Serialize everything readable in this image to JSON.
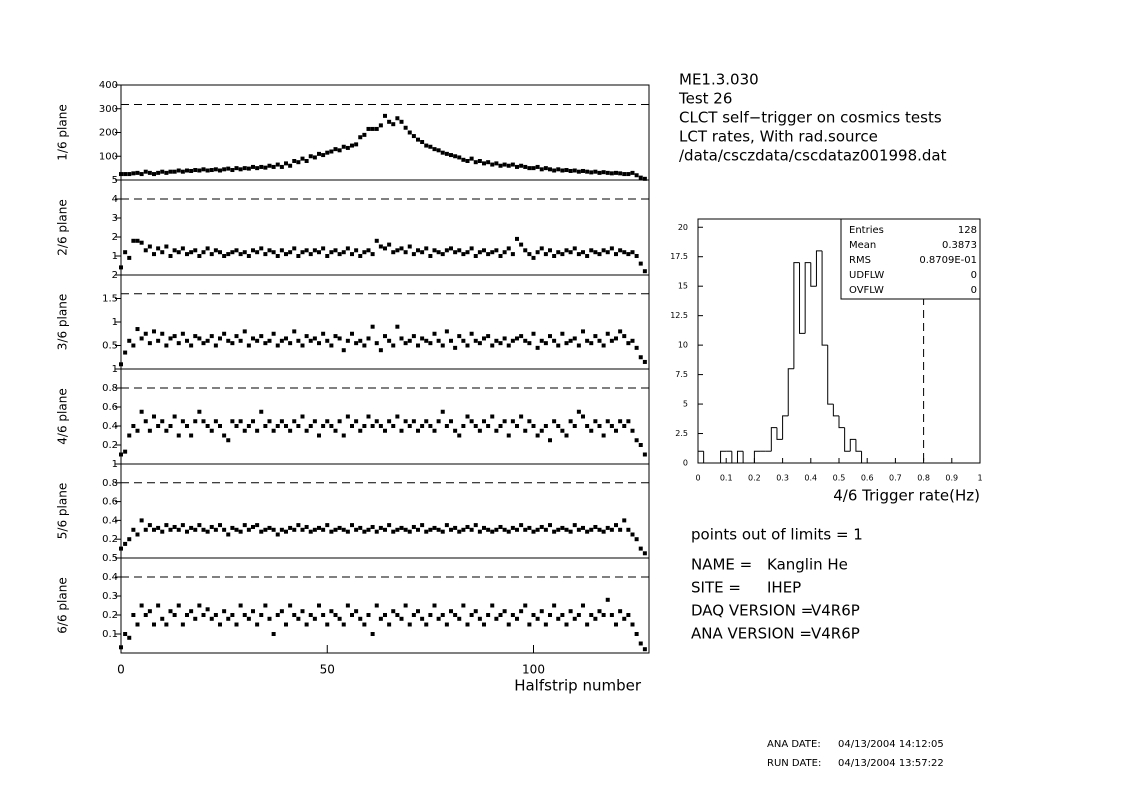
{
  "header": [
    "ME1.3.030",
    "Test 26",
    "CLCT self−trigger on cosmics tests",
    "LCT rates, With rad.source",
    "/data/csczdata/cscdataz001998.dat"
  ],
  "out_of_limits": "points out of limits = 1",
  "fields": [
    {
      "label": "NAME =",
      "value": "Kanglin He"
    },
    {
      "label": "SITE =",
      "value": "IHEP"
    },
    {
      "label": "DAQ VERSION =",
      "value": "V4R6P"
    },
    {
      "label": "ANA VERSION =",
      "value": "V4R6P"
    }
  ],
  "dates": [
    {
      "label": "ANA DATE:",
      "value": "04/13/2004 14:12:05"
    },
    {
      "label": "RUN DATE:",
      "value": "04/13/2004 13:57:22"
    }
  ],
  "chart_data": [
    {
      "type": "scatter",
      "ylabel": "1/6 plane",
      "color": "#000000",
      "xlim": [
        0,
        128
      ],
      "ylim": [
        0,
        400
      ],
      "yticks": [
        100,
        200,
        300,
        400
      ],
      "limit": 318,
      "values": [
        25,
        25,
        25,
        28,
        30,
        25,
        35,
        30,
        25,
        30,
        35,
        30,
        35,
        35,
        40,
        35,
        40,
        38,
        42,
        40,
        45,
        40,
        42,
        45,
        40,
        45,
        48,
        42,
        50,
        45,
        50,
        48,
        55,
        50,
        55,
        52,
        60,
        55,
        65,
        55,
        70,
        60,
        80,
        75,
        90,
        80,
        100,
        95,
        110,
        105,
        115,
        120,
        130,
        125,
        140,
        135,
        145,
        150,
        180,
        190,
        215,
        215,
        215,
        230,
        270,
        245,
        235,
        260,
        245,
        220,
        200,
        185,
        170,
        160,
        145,
        140,
        130,
        125,
        115,
        110,
        105,
        100,
        95,
        85,
        80,
        90,
        75,
        80,
        70,
        75,
        65,
        70,
        60,
        65,
        60,
        65,
        55,
        60,
        55,
        50,
        50,
        55,
        45,
        50,
        45,
        40,
        45,
        40,
        42,
        38,
        40,
        35,
        38,
        35,
        32,
        35,
        30,
        33,
        30,
        28,
        30,
        28,
        25,
        25,
        30,
        20,
        10,
        5
      ]
    },
    {
      "type": "scatter",
      "ylabel": "2/6 plane",
      "color": "#000000",
      "xlim": [
        0,
        128
      ],
      "ylim": [
        0,
        5
      ],
      "yticks": [
        1,
        2,
        3,
        4,
        5
      ],
      "limit": 4,
      "values": [
        0.4,
        1.2,
        0.9,
        1.8,
        1.8,
        1.7,
        1.3,
        1.5,
        1.1,
        1.4,
        1.2,
        1.5,
        1.0,
        1.3,
        1.2,
        1.4,
        1.1,
        1.2,
        1.3,
        1.0,
        1.2,
        1.4,
        1.1,
        1.3,
        1.2,
        1.0,
        1.1,
        1.2,
        1.3,
        1.1,
        1.2,
        1.0,
        1.3,
        1.2,
        1.4,
        1.1,
        1.3,
        1.2,
        1.0,
        1.3,
        1.1,
        1.2,
        1.4,
        1.0,
        1.2,
        1.3,
        1.1,
        1.3,
        1.2,
        1.4,
        1.0,
        1.2,
        1.3,
        1.1,
        1.2,
        1.4,
        1.1,
        1.3,
        1.0,
        1.2,
        1.3,
        1.1,
        1.8,
        1.5,
        1.4,
        1.6,
        1.2,
        1.3,
        1.4,
        1.2,
        1.5,
        1.1,
        1.3,
        1.2,
        1.4,
        1.0,
        1.3,
        1.2,
        1.1,
        1.3,
        1.4,
        1.2,
        1.3,
        1.1,
        1.2,
        1.4,
        1.0,
        1.2,
        1.3,
        1.1,
        1.2,
        1.3,
        1.0,
        1.2,
        1.4,
        1.1,
        1.9,
        1.6,
        1.3,
        1.1,
        0.9,
        1.2,
        1.4,
        1.1,
        1.3,
        1.0,
        1.2,
        1.1,
        1.3,
        1.2,
        1.4,
        1.1,
        1.2,
        1.0,
        1.3,
        1.2,
        1.1,
        1.3,
        1.2,
        1.4,
        1.1,
        1.3,
        1.2,
        1.1,
        1.2,
        1.0,
        0.6,
        0.2
      ]
    },
    {
      "type": "scatter",
      "ylabel": "3/6 plane",
      "color": "#000000",
      "xlim": [
        0,
        128
      ],
      "ylim": [
        0,
        2
      ],
      "yticks": [
        0.5,
        1,
        1.5,
        2
      ],
      "limit": 1.6,
      "values": [
        0.1,
        0.35,
        0.6,
        0.5,
        0.85,
        0.65,
        0.75,
        0.55,
        0.8,
        0.6,
        0.75,
        0.5,
        0.65,
        0.7,
        0.55,
        0.75,
        0.6,
        0.5,
        0.7,
        0.65,
        0.55,
        0.6,
        0.7,
        0.5,
        0.65,
        0.75,
        0.6,
        0.55,
        0.7,
        0.6,
        0.8,
        0.5,
        0.65,
        0.6,
        0.7,
        0.55,
        0.6,
        0.75,
        0.5,
        0.6,
        0.65,
        0.55,
        0.8,
        0.6,
        0.5,
        0.7,
        0.6,
        0.65,
        0.55,
        0.75,
        0.6,
        0.5,
        0.7,
        0.65,
        0.4,
        0.6,
        0.75,
        0.55,
        0.6,
        0.5,
        0.65,
        0.9,
        0.55,
        0.4,
        0.7,
        0.6,
        0.5,
        0.9,
        0.65,
        0.55,
        0.6,
        0.7,
        0.5,
        0.65,
        0.6,
        0.55,
        0.75,
        0.6,
        0.5,
        0.8,
        0.6,
        0.45,
        0.7,
        0.6,
        0.5,
        0.75,
        0.6,
        0.55,
        0.65,
        0.7,
        0.5,
        0.6,
        0.55,
        0.65,
        0.5,
        0.6,
        0.65,
        0.7,
        0.6,
        0.55,
        0.75,
        0.45,
        0.6,
        0.55,
        0.7,
        0.6,
        0.5,
        0.75,
        0.55,
        0.6,
        0.65,
        0.5,
        0.8,
        0.6,
        0.55,
        0.7,
        0.6,
        0.5,
        0.75,
        0.6,
        0.65,
        0.8,
        0.7,
        0.55,
        0.6,
        0.45,
        0.25,
        0.15
      ]
    },
    {
      "type": "scatter",
      "ylabel": "4/6 plane",
      "color": "#000000",
      "xlim": [
        0,
        128
      ],
      "ylim": [
        0,
        1
      ],
      "yticks": [
        0.2,
        0.4,
        0.6,
        0.8,
        1
      ],
      "limit": 0.8,
      "values": [
        0.1,
        0.13,
        0.3,
        0.4,
        0.35,
        0.55,
        0.45,
        0.35,
        0.5,
        0.4,
        0.45,
        0.35,
        0.4,
        0.5,
        0.3,
        0.45,
        0.4,
        0.3,
        0.45,
        0.55,
        0.45,
        0.4,
        0.35,
        0.45,
        0.4,
        0.3,
        0.25,
        0.45,
        0.4,
        0.45,
        0.35,
        0.4,
        0.45,
        0.35,
        0.55,
        0.4,
        0.45,
        0.35,
        0.4,
        0.45,
        0.4,
        0.35,
        0.45,
        0.4,
        0.5,
        0.35,
        0.4,
        0.45,
        0.3,
        0.4,
        0.45,
        0.4,
        0.35,
        0.45,
        0.3,
        0.5,
        0.4,
        0.45,
        0.35,
        0.4,
        0.5,
        0.4,
        0.45,
        0.4,
        0.35,
        0.45,
        0.4,
        0.5,
        0.35,
        0.45,
        0.4,
        0.45,
        0.35,
        0.4,
        0.45,
        0.4,
        0.35,
        0.45,
        0.55,
        0.4,
        0.45,
        0.35,
        0.3,
        0.4,
        0.5,
        0.45,
        0.4,
        0.35,
        0.45,
        0.4,
        0.5,
        0.35,
        0.4,
        0.45,
        0.3,
        0.45,
        0.4,
        0.5,
        0.35,
        0.45,
        0.4,
        0.3,
        0.35,
        0.4,
        0.25,
        0.45,
        0.4,
        0.35,
        0.3,
        0.45,
        0.4,
        0.55,
        0.5,
        0.4,
        0.35,
        0.45,
        0.4,
        0.3,
        0.45,
        0.4,
        0.35,
        0.45,
        0.4,
        0.45,
        0.35,
        0.25,
        0.2,
        0.1
      ]
    },
    {
      "type": "scatter",
      "ylabel": "5/6 plane",
      "color": "#000000",
      "xlim": [
        0,
        128
      ],
      "ylim": [
        0,
        1
      ],
      "yticks": [
        0.2,
        0.4,
        0.6,
        0.8,
        1
      ],
      "limit": 0.8,
      "values": [
        0.1,
        0.15,
        0.2,
        0.3,
        0.25,
        0.4,
        0.3,
        0.35,
        0.3,
        0.32,
        0.28,
        0.35,
        0.3,
        0.33,
        0.3,
        0.35,
        0.28,
        0.32,
        0.3,
        0.35,
        0.3,
        0.28,
        0.33,
        0.3,
        0.35,
        0.3,
        0.25,
        0.32,
        0.3,
        0.28,
        0.35,
        0.3,
        0.33,
        0.35,
        0.28,
        0.3,
        0.32,
        0.3,
        0.25,
        0.3,
        0.28,
        0.32,
        0.3,
        0.35,
        0.3,
        0.33,
        0.28,
        0.3,
        0.32,
        0.3,
        0.35,
        0.28,
        0.3,
        0.32,
        0.3,
        0.28,
        0.35,
        0.3,
        0.32,
        0.28,
        0.3,
        0.33,
        0.28,
        0.32,
        0.3,
        0.35,
        0.28,
        0.3,
        0.32,
        0.3,
        0.28,
        0.33,
        0.3,
        0.35,
        0.28,
        0.3,
        0.32,
        0.3,
        0.28,
        0.35,
        0.3,
        0.32,
        0.28,
        0.3,
        0.33,
        0.3,
        0.35,
        0.28,
        0.32,
        0.3,
        0.28,
        0.3,
        0.33,
        0.3,
        0.28,
        0.32,
        0.3,
        0.35,
        0.3,
        0.32,
        0.28,
        0.3,
        0.33,
        0.3,
        0.35,
        0.28,
        0.3,
        0.32,
        0.3,
        0.28,
        0.35,
        0.3,
        0.32,
        0.28,
        0.3,
        0.33,
        0.3,
        0.28,
        0.32,
        0.3,
        0.35,
        0.3,
        0.4,
        0.3,
        0.25,
        0.2,
        0.1,
        0.05
      ]
    },
    {
      "type": "scatter",
      "ylabel": "6/6 plane",
      "color": "#000000",
      "xlim": [
        0,
        128
      ],
      "ylim": [
        0,
        0.5
      ],
      "yticks": [
        0.1,
        0.2,
        0.3,
        0.4,
        0.5
      ],
      "limit": 0.4,
      "xticks": [
        0,
        50,
        100
      ],
      "xlabel": "Halfstrip number",
      "values": [
        0.03,
        0.1,
        0.08,
        0.2,
        0.15,
        0.25,
        0.2,
        0.22,
        0.15,
        0.25,
        0.18,
        0.15,
        0.22,
        0.2,
        0.25,
        0.15,
        0.2,
        0.22,
        0.18,
        0.25,
        0.2,
        0.23,
        0.18,
        0.2,
        0.15,
        0.22,
        0.18,
        0.2,
        0.15,
        0.25,
        0.2,
        0.18,
        0.22,
        0.15,
        0.2,
        0.25,
        0.18,
        0.1,
        0.2,
        0.22,
        0.15,
        0.25,
        0.2,
        0.18,
        0.22,
        0.15,
        0.2,
        0.18,
        0.25,
        0.2,
        0.15,
        0.22,
        0.2,
        0.18,
        0.15,
        0.25,
        0.2,
        0.22,
        0.18,
        0.15,
        0.2,
        0.1,
        0.25,
        0.18,
        0.2,
        0.15,
        0.22,
        0.2,
        0.18,
        0.25,
        0.15,
        0.2,
        0.22,
        0.18,
        0.15,
        0.2,
        0.25,
        0.18,
        0.2,
        0.15,
        0.22,
        0.2,
        0.18,
        0.25,
        0.15,
        0.2,
        0.22,
        0.18,
        0.15,
        0.2,
        0.25,
        0.18,
        0.2,
        0.22,
        0.15,
        0.2,
        0.18,
        0.22,
        0.25,
        0.15,
        0.2,
        0.18,
        0.22,
        0.15,
        0.2,
        0.25,
        0.18,
        0.2,
        0.15,
        0.22,
        0.18,
        0.2,
        0.25,
        0.15,
        0.2,
        0.18,
        0.22,
        0.2,
        0.28,
        0.2,
        0.15,
        0.22,
        0.18,
        0.2,
        0.15,
        0.1,
        0.05,
        0.02
      ]
    },
    {
      "type": "histogram",
      "xlabel": "4/6 Trigger rate(Hz)",
      "color": "#000000",
      "limit": 0.8,
      "xlim": [
        0,
        1
      ],
      "xticks": [
        0,
        0.1,
        0.2,
        0.3,
        0.4,
        0.5,
        0.6,
        0.7,
        0.8,
        0.9,
        1
      ],
      "ylim": [
        0,
        20.7
      ],
      "yticks": [
        0,
        {
          "value": 2.5,
          "label": "2.5"
        },
        5,
        {
          "value": 7.5,
          "label": "7.5"
        },
        10,
        {
          "value": 12.5,
          "label": "12.5"
        },
        15,
        {
          "value": 17.5,
          "label": "17.5"
        },
        20
      ],
      "bins": [
        0,
        0.02,
        0.04,
        0.06,
        0.08,
        0.1,
        0.12,
        0.14,
        0.16,
        0.18,
        0.2,
        0.22,
        0.24,
        0.26,
        0.28,
        0.3,
        0.32,
        0.34,
        0.36,
        0.38,
        0.4,
        0.42,
        0.44,
        0.46,
        0.48,
        0.5,
        0.52,
        0.54,
        0.56,
        0.58,
        0.6,
        0.62,
        0.64,
        0.66,
        0.68,
        0.7,
        0.72,
        0.74,
        0.76,
        0.78,
        0.8,
        0.82,
        0.84,
        0.86,
        0.88,
        0.9,
        0.92,
        0.94,
        0.96,
        0.98,
        1
      ],
      "counts": [
        1,
        0,
        0,
        0,
        1,
        1,
        0,
        1,
        0,
        0,
        1,
        1,
        1,
        3,
        2,
        4,
        8,
        17,
        11,
        17,
        15,
        18,
        10,
        5,
        4,
        3,
        1,
        2,
        1,
        0,
        0,
        0,
        0,
        0,
        0,
        0,
        0,
        0,
        0,
        0,
        0,
        0,
        0,
        0,
        0,
        0,
        0,
        0,
        0,
        0
      ],
      "stats": [
        {
          "label": "Entries",
          "value": "128"
        },
        {
          "label": "Mean",
          "value": "0.3873"
        },
        {
          "label": "RMS",
          "value": "0.8709E-01"
        },
        {
          "label": "UDFLW",
          "value": "0"
        },
        {
          "label": "OVFLW",
          "value": "0"
        }
      ]
    }
  ]
}
